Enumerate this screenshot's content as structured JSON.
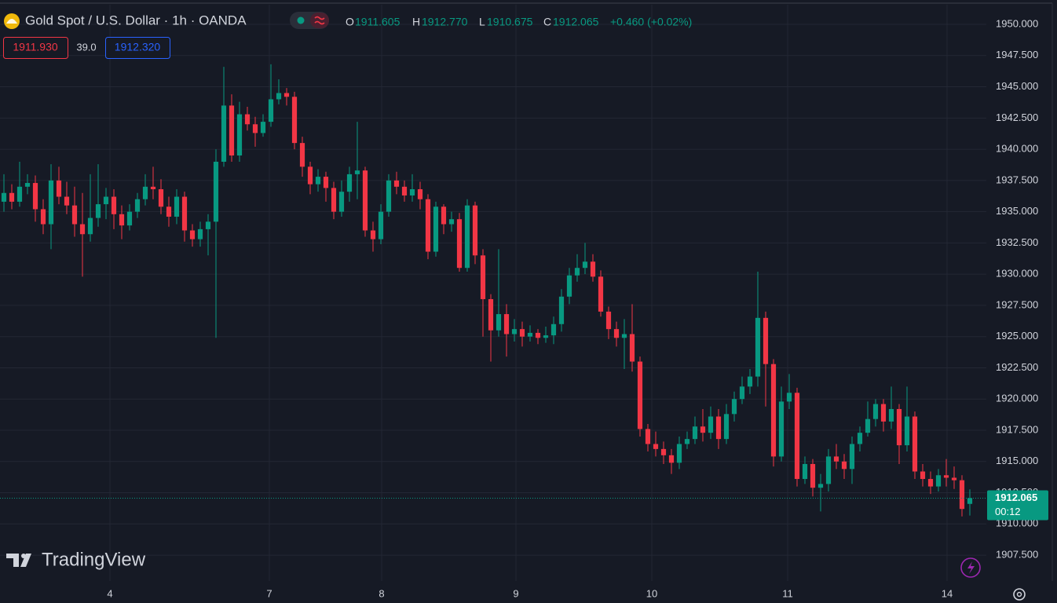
{
  "chart_data": {
    "type": "candlestick",
    "title": "Gold Spot / U.S. Dollar · 1h · OANDA",
    "ohlc_labels": [
      "O",
      "H",
      "L",
      "C"
    ],
    "ohlc_values": [
      "1911.605",
      "1912.770",
      "1910.675",
      "1912.065"
    ],
    "change": "+0.460 (+0.02%)",
    "bid": "1911.930",
    "spread": "39.0",
    "ask": "1912.320",
    "countdown": "00:12",
    "brand": "TradingView",
    "up_color": "#089981",
    "down_color": "#f23645",
    "grid": true,
    "xlim": [
      -0.5,
      123.5
    ],
    "xticks": [
      {
        "value": 13.5,
        "label": "4"
      },
      {
        "value": 33.8,
        "label": "7"
      },
      {
        "value": 48.1,
        "label": "8"
      },
      {
        "value": 65.2,
        "label": "9"
      },
      {
        "value": 82.5,
        "label": "10"
      },
      {
        "value": 99.8,
        "label": "11"
      },
      {
        "value": 120.1,
        "label": "14"
      }
    ],
    "ylim": [
      1905.43,
      1951.95
    ],
    "yticks": [
      {
        "value": 1907.5,
        "label": "1907.500"
      },
      {
        "value": 1910,
        "label": "1910.000"
      },
      {
        "value": 1912.5,
        "label": "1912.500"
      },
      {
        "value": 1915,
        "label": "1915.000"
      },
      {
        "value": 1917.5,
        "label": "1917.500"
      },
      {
        "value": 1920,
        "label": "1920.000"
      },
      {
        "value": 1922.5,
        "label": "1922.500"
      },
      {
        "value": 1925,
        "label": "1925.000"
      },
      {
        "value": 1927.5,
        "label": "1927.500"
      },
      {
        "value": 1930,
        "label": "1930.000"
      },
      {
        "value": 1932.5,
        "label": "1932.500"
      },
      {
        "value": 1935,
        "label": "1935.000"
      },
      {
        "value": 1937.5,
        "label": "1937.500"
      },
      {
        "value": 1940,
        "label": "1940.000"
      },
      {
        "value": 1942.5,
        "label": "1942.500"
      },
      {
        "value": 1945,
        "label": "1945.000"
      },
      {
        "value": 1947.5,
        "label": "1947.500"
      },
      {
        "value": 1950,
        "label": "1950.000"
      }
    ],
    "open": [
      1935.8,
      1936.5,
      1935.8,
      1937.0,
      1937.3,
      1935.2,
      1934.0,
      1937.5,
      1936.2,
      1935.5,
      1934.0,
      1933.2,
      1934.5,
      1935.6,
      1936.2,
      1934.8,
      1933.9,
      1935.0,
      1936.0,
      1937.0,
      1936.8,
      1935.4,
      1934.6,
      1936.2,
      1933.5,
      1932.8,
      1933.6,
      1934.2,
      1939.0,
      1943.5,
      1939.5,
      1942.8,
      1942.0,
      1941.3,
      1942.2,
      1944.0,
      1944.5,
      1944.2,
      1940.5,
      1938.6,
      1937.2,
      1937.8,
      1936.9,
      1935.0,
      1936.6,
      1938.0,
      1938.3,
      1933.5,
      1932.8,
      1935.0,
      1937.5,
      1937.0,
      1936.3,
      1936.8,
      1936.0,
      1931.8,
      1935.4,
      1934.0,
      1934.4,
      1930.5,
      1935.5,
      1931.5,
      1928.0,
      1925.5,
      1926.8,
      1925.2,
      1925.6,
      1925.0,
      1925.3,
      1924.9,
      1925.1,
      1926.0,
      1928.2,
      1929.9,
      1930.5,
      1931.0,
      1929.8,
      1927.0,
      1925.6,
      1924.9,
      1925.2,
      1923.0,
      1917.6,
      1916.4,
      1916.0,
      1915.5,
      1914.9,
      1916.4,
      1916.8,
      1917.8,
      1917.3,
      1918.6,
      1916.8,
      1918.8,
      1920.0,
      1921.0,
      1921.8,
      1926.5,
      1922.8,
      1915.4,
      1919.8,
      1920.5,
      1913.6,
      1914.8,
      1912.9,
      1913.2,
      1915.4,
      1915.0,
      1914.4,
      1916.4,
      1917.3,
      1918.4,
      1919.6,
      1918.2,
      1919.2,
      1916.3,
      1918.6,
      1914.2,
      1913.6,
      1913.0,
      1913.9,
      1913.7,
      1913.5,
      1911.605
    ],
    "high": [
      1938.0,
      1937.2,
      1939.0,
      1938.0,
      1937.9,
      1936.0,
      1938.8,
      1938.6,
      1937.4,
      1937.0,
      1936.5,
      1938.0,
      1938.8,
      1936.9,
      1936.8,
      1935.5,
      1935.6,
      1936.5,
      1938.0,
      1938.6,
      1937.6,
      1936.2,
      1936.8,
      1936.6,
      1934.0,
      1934.2,
      1934.8,
      1940.0,
      1946.6,
      1944.4,
      1943.8,
      1943.4,
      1942.6,
      1942.8,
      1946.8,
      1945.6,
      1944.9,
      1944.6,
      1941.0,
      1939.0,
      1938.4,
      1938.2,
      1937.4,
      1937.5,
      1938.6,
      1942.2,
      1938.6,
      1934.2,
      1935.6,
      1938.0,
      1938.2,
      1937.5,
      1938.0,
      1937.4,
      1936.4,
      1935.8,
      1935.6,
      1935.0,
      1934.9,
      1936.0,
      1935.8,
      1932.0,
      1928.4,
      1932.0,
      1927.6,
      1926.4,
      1926.2,
      1925.9,
      1925.6,
      1925.8,
      1926.6,
      1928.8,
      1930.5,
      1931.6,
      1932.5,
      1931.6,
      1930.3,
      1927.4,
      1926.2,
      1926.4,
      1927.6,
      1923.4,
      1918.0,
      1917.4,
      1916.6,
      1916.0,
      1917.0,
      1917.4,
      1918.6,
      1919.2,
      1919.4,
      1919.2,
      1919.6,
      1920.6,
      1921.8,
      1922.4,
      1930.2,
      1927.0,
      1923.2,
      1921.0,
      1922.0,
      1920.9,
      1915.4,
      1915.2,
      1914.0,
      1916.0,
      1916.4,
      1915.6,
      1917.0,
      1917.8,
      1919.8,
      1920.0,
      1920.0,
      1921.0,
      1919.6,
      1921.0,
      1919.0,
      1914.8,
      1914.2,
      1914.4,
      1915.2,
      1914.6,
      1913.9,
      1912.77
    ],
    "low": [
      1935.0,
      1935.2,
      1935.4,
      1936.4,
      1934.2,
      1933.2,
      1932.0,
      1935.6,
      1934.8,
      1933.0,
      1929.8,
      1932.6,
      1933.8,
      1934.4,
      1933.6,
      1932.8,
      1933.5,
      1934.5,
      1935.5,
      1936.0,
      1934.8,
      1933.8,
      1934.0,
      1932.6,
      1932.2,
      1932.2,
      1931.5,
      1924.9,
      1938.6,
      1939.0,
      1939.0,
      1941.5,
      1940.2,
      1941.0,
      1941.8,
      1943.6,
      1943.5,
      1940.0,
      1937.8,
      1936.4,
      1936.6,
      1935.8,
      1934.4,
      1934.6,
      1935.8,
      1936.0,
      1933.0,
      1931.8,
      1932.4,
      1934.6,
      1936.4,
      1935.8,
      1935.8,
      1935.2,
      1931.2,
      1931.4,
      1933.2,
      1933.4,
      1930.2,
      1930.2,
      1930.8,
      1925.0,
      1923.0,
      1925.0,
      1923.4,
      1924.6,
      1924.2,
      1924.6,
      1924.4,
      1924.5,
      1924.4,
      1925.4,
      1927.6,
      1929.4,
      1930.0,
      1929.4,
      1926.6,
      1924.8,
      1924.2,
      1922.4,
      1922.2,
      1917.0,
      1915.8,
      1915.4,
      1914.8,
      1914.0,
      1914.4,
      1916.0,
      1916.4,
      1916.6,
      1916.8,
      1916.0,
      1916.4,
      1918.2,
      1919.6,
      1920.4,
      1921.0,
      1919.4,
      1914.6,
      1915.0,
      1919.2,
      1913.0,
      1913.2,
      1912.2,
      1911.0,
      1912.6,
      1914.4,
      1913.6,
      1913.2,
      1915.8,
      1917.0,
      1917.8,
      1917.4,
      1917.6,
      1914.8,
      1915.8,
      1913.6,
      1913.0,
      1912.4,
      1912.6,
      1913.0,
      1912.8,
      1910.6,
      1910.675
    ],
    "close": [
      1936.5,
      1935.8,
      1937.0,
      1937.3,
      1935.2,
      1934.0,
      1937.5,
      1936.2,
      1935.5,
      1934.0,
      1933.2,
      1934.5,
      1935.6,
      1936.2,
      1934.8,
      1933.9,
      1935.0,
      1936.0,
      1937.0,
      1936.8,
      1935.4,
      1934.6,
      1936.2,
      1933.5,
      1932.8,
      1933.6,
      1934.2,
      1939.0,
      1943.5,
      1939.5,
      1942.8,
      1942.0,
      1941.3,
      1942.2,
      1944.0,
      1944.5,
      1944.2,
      1940.5,
      1938.6,
      1937.2,
      1937.8,
      1936.9,
      1935.0,
      1936.6,
      1938.0,
      1938.3,
      1933.5,
      1932.8,
      1935.0,
      1937.5,
      1937.0,
      1936.3,
      1936.8,
      1936.0,
      1931.8,
      1935.4,
      1934.0,
      1934.4,
      1930.5,
      1935.5,
      1931.5,
      1928.0,
      1925.5,
      1926.8,
      1925.2,
      1925.6,
      1925.0,
      1925.3,
      1924.9,
      1925.1,
      1926.0,
      1928.2,
      1929.9,
      1930.5,
      1931.0,
      1929.8,
      1927.0,
      1925.6,
      1924.9,
      1925.2,
      1923.0,
      1917.6,
      1916.4,
      1916.0,
      1915.5,
      1914.9,
      1916.4,
      1916.8,
      1917.8,
      1917.3,
      1918.6,
      1916.8,
      1918.8,
      1920.0,
      1921.0,
      1921.8,
      1926.5,
      1922.8,
      1915.4,
      1919.8,
      1920.5,
      1913.6,
      1914.8,
      1912.9,
      1913.2,
      1915.4,
      1915.0,
      1914.4,
      1916.4,
      1917.3,
      1918.4,
      1919.6,
      1918.2,
      1919.2,
      1916.3,
      1918.6,
      1914.2,
      1913.6,
      1913.0,
      1913.9,
      1913.7,
      1913.5,
      1911.2,
      1912.065
    ]
  }
}
